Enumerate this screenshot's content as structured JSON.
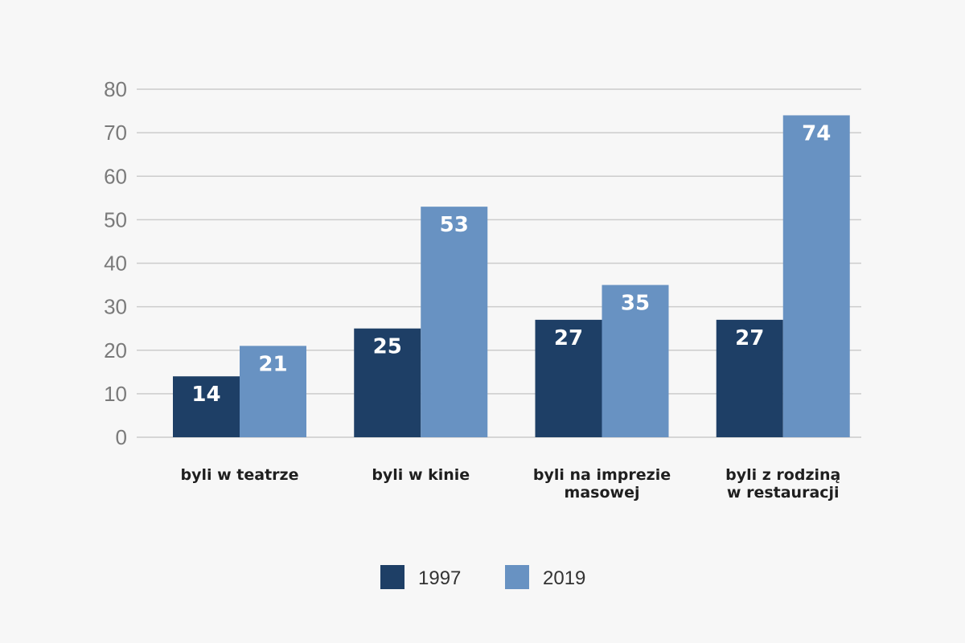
{
  "chart_data": {
    "type": "bar",
    "title": "",
    "xlabel": "",
    "ylabel": "",
    "ylim": [
      0,
      80
    ],
    "yticks": [
      0,
      10,
      20,
      30,
      40,
      50,
      60,
      70,
      80
    ],
    "grid": true,
    "legend_position": "bottom",
    "categories": [
      [
        "byli w teatrze"
      ],
      [
        "byli w kinie"
      ],
      [
        "byli na imprezie",
        "masowej"
      ],
      [
        "byli z rodziną",
        "w restauracji"
      ]
    ],
    "series": [
      {
        "name": "1997",
        "color": "#1e3f66",
        "values": [
          14,
          25,
          27,
          27
        ],
        "labels": [
          "14",
          "25",
          "27",
          "27"
        ]
      },
      {
        "name": "2019",
        "color": "#6892c2",
        "values": [
          21,
          53,
          35,
          74
        ],
        "labels": [
          "21",
          "53",
          "35",
          "74"
        ]
      }
    ]
  }
}
